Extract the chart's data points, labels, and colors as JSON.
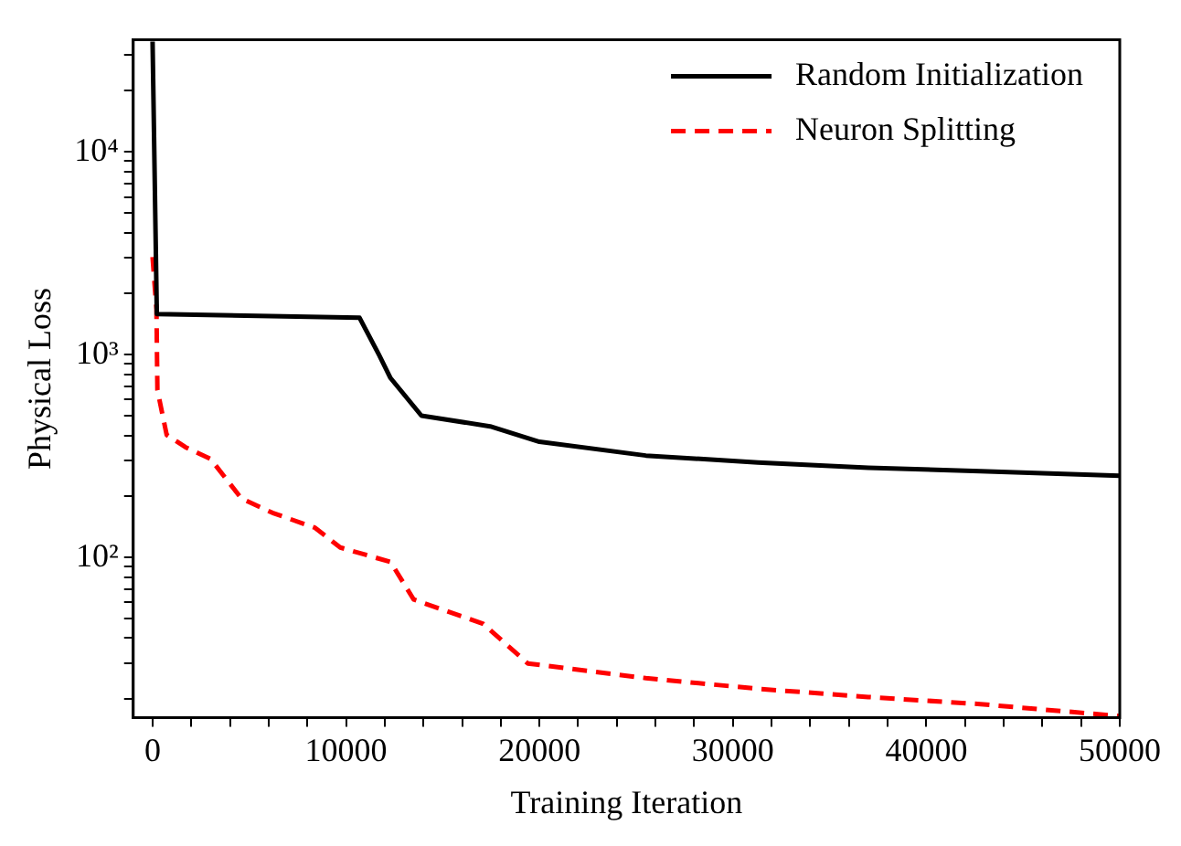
{
  "chart_data": {
    "type": "line",
    "xlabel": "Training Iteration",
    "ylabel": "Physical Loss",
    "log": "y",
    "grid": false,
    "legend": "top right",
    "marker": "none",
    "xlim": [
      -1000,
      50000
    ],
    "ylim": [
      16.2,
      35700
    ],
    "xticks": [
      0,
      {
        "value": 2000,
        "label": null
      },
      {
        "value": 4000,
        "label": null
      },
      {
        "value": 6000,
        "label": null
      },
      {
        "value": 8000,
        "label": null
      },
      10000,
      {
        "value": 12000,
        "label": null
      },
      {
        "value": 14000,
        "label": null
      },
      {
        "value": 16000,
        "label": null
      },
      {
        "value": 18000,
        "label": null
      },
      20000,
      {
        "value": 22000,
        "label": null
      },
      {
        "value": 24000,
        "label": null
      },
      {
        "value": 26000,
        "label": null
      },
      {
        "value": 28000,
        "label": null
      },
      30000,
      {
        "value": 32000,
        "label": null
      },
      {
        "value": 34000,
        "label": null
      },
      {
        "value": 36000,
        "label": null
      },
      {
        "value": 38000,
        "label": null
      },
      40000,
      {
        "value": 42000,
        "label": null
      },
      {
        "value": 44000,
        "label": null
      },
      {
        "value": 46000,
        "label": null
      },
      {
        "value": 48000,
        "label": null
      },
      50000
    ],
    "yticks": [
      {
        "value": 20,
        "label": null
      },
      {
        "value": 30,
        "label": null
      },
      {
        "value": 40,
        "label": null
      },
      {
        "value": 50,
        "label": null
      },
      {
        "value": 60,
        "label": null
      },
      {
        "value": 70,
        "label": null
      },
      {
        "value": 80,
        "label": null
      },
      {
        "value": 90,
        "label": null
      },
      {
        "value": 100,
        "label": "10²"
      },
      {
        "value": 200,
        "label": null
      },
      {
        "value": 300,
        "label": null
      },
      {
        "value": 400,
        "label": null
      },
      {
        "value": 500,
        "label": null
      },
      {
        "value": 600,
        "label": null
      },
      {
        "value": 700,
        "label": null
      },
      {
        "value": 800,
        "label": null
      },
      {
        "value": 900,
        "label": null
      },
      {
        "value": 1000,
        "label": "10³"
      },
      {
        "value": 2000,
        "label": null
      },
      {
        "value": 3000,
        "label": null
      },
      {
        "value": 4000,
        "label": null
      },
      {
        "value": 5000,
        "label": null
      },
      {
        "value": 6000,
        "label": null
      },
      {
        "value": 7000,
        "label": null
      },
      {
        "value": 8000,
        "label": null
      },
      {
        "value": 9000,
        "label": null
      },
      {
        "value": 10000,
        "label": "10⁴"
      },
      {
        "value": 20000,
        "label": null
      },
      {
        "value": 30000,
        "label": null
      }
    ],
    "series": [
      {
        "name": "Random Initialization",
        "color": "#000000",
        "line_style": "solid",
        "x": [
          0,
          50,
          220,
          10700,
          11700,
          12300,
          13900,
          17450,
          20000,
          25500,
          31300,
          37000,
          42800,
          50000
        ],
        "values": [
          35000,
          35000,
          1585,
          1520,
          1000,
          767,
          500,
          443,
          372,
          318,
          294,
          277,
          266,
          253
        ]
      },
      {
        "name": "Neuron Splitting",
        "color": "#ff0000",
        "line_style": "dashed",
        "x": [
          0,
          200,
          250,
          730,
          1700,
          3000,
          4600,
          6200,
          8400,
          9700,
          12300,
          13500,
          17100,
          19400,
          25500,
          31300,
          37000,
          42800,
          50000
        ],
        "values": [
          3030,
          1680,
          670,
          402,
          350,
          306,
          195,
          166,
          140,
          112,
          95,
          62,
          47,
          30,
          25.4,
          22.5,
          20.5,
          18.9,
          16.5
        ]
      }
    ]
  }
}
